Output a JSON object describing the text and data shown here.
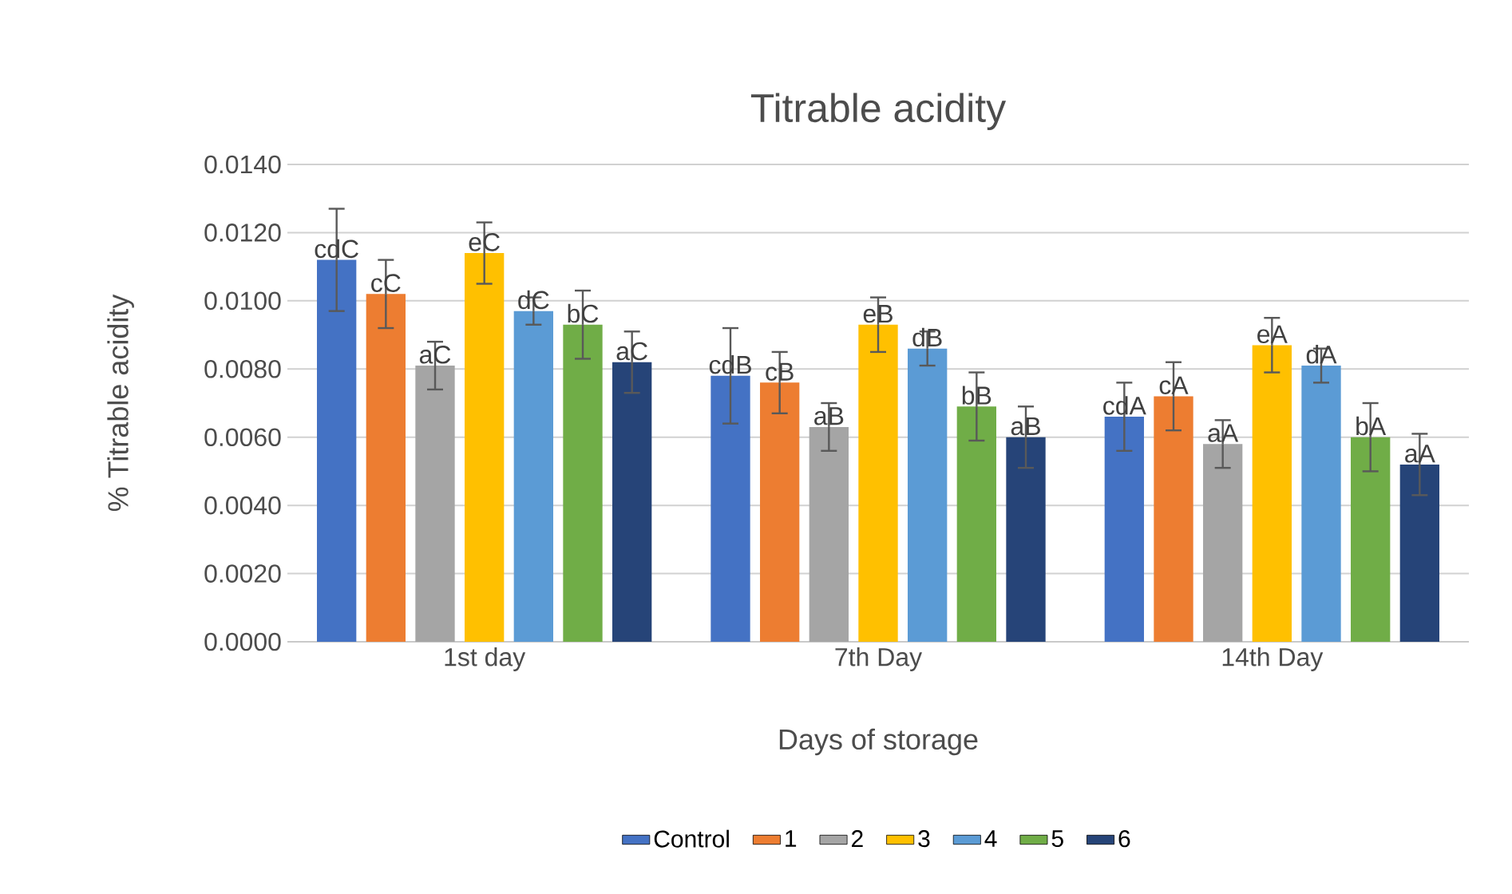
{
  "chart_data": {
    "type": "bar",
    "title": "Titrable acidity",
    "xlabel": "Days of storage",
    "ylabel": "% Titrable acidity",
    "categories": [
      "1st day",
      "7th Day",
      "14th Day"
    ],
    "series": [
      {
        "name": "Control",
        "color": "#4472c4",
        "values": [
          0.0112,
          0.0078,
          0.0066
        ],
        "errors": [
          0.0015,
          0.0014,
          0.001
        ],
        "value_labels": [
          "cdC",
          "cdB",
          "cdA"
        ]
      },
      {
        "name": "1",
        "color": "#ed7d31",
        "values": [
          0.0102,
          0.0076,
          0.0072
        ],
        "errors": [
          0.001,
          0.0009,
          0.001
        ],
        "value_labels": [
          "cC",
          "cB",
          "cA"
        ]
      },
      {
        "name": "2",
        "color": "#a5a5a5",
        "values": [
          0.0081,
          0.0063,
          0.0058
        ],
        "errors": [
          0.0007,
          0.0007,
          0.0007
        ],
        "value_labels": [
          "aC",
          "aB",
          "aA"
        ]
      },
      {
        "name": "3",
        "color": "#ffc000",
        "values": [
          0.0114,
          0.0093,
          0.0087
        ],
        "errors": [
          0.0009,
          0.0008,
          0.0008
        ],
        "value_labels": [
          "eC",
          "eB",
          "eA"
        ]
      },
      {
        "name": "4",
        "color": "#5b9bd5",
        "values": [
          0.0097,
          0.0086,
          0.0081
        ],
        "errors": [
          0.0004,
          0.0005,
          0.0005
        ],
        "value_labels": [
          "dC",
          "dB",
          "dA"
        ]
      },
      {
        "name": "5",
        "color": "#70ad47",
        "values": [
          0.0093,
          0.0069,
          0.006
        ],
        "errors": [
          0.001,
          0.001,
          0.001
        ],
        "value_labels": [
          "bC",
          "bB",
          "bA"
        ]
      },
      {
        "name": "6",
        "color": "#264478",
        "values": [
          0.0082,
          0.006,
          0.0052
        ],
        "errors": [
          0.0009,
          0.0009,
          0.0009
        ],
        "value_labels": [
          "aC",
          "aB",
          "aA"
        ]
      }
    ],
    "ylim": [
      0,
      0.014
    ],
    "yticks": [
      {
        "value": 0,
        "label": "0.0000"
      },
      {
        "value": 0.002,
        "label": "0.0020"
      },
      {
        "value": 0.004,
        "label": "0.0040"
      },
      {
        "value": 0.006,
        "label": "0.0060"
      },
      {
        "value": 0.008,
        "label": "0.0080"
      },
      {
        "value": 0.01,
        "label": "0.0100"
      },
      {
        "value": 0.012,
        "label": "0.0120"
      },
      {
        "value": 0.014,
        "label": "0.0140"
      }
    ],
    "grid": "y",
    "legend": "bottom"
  }
}
